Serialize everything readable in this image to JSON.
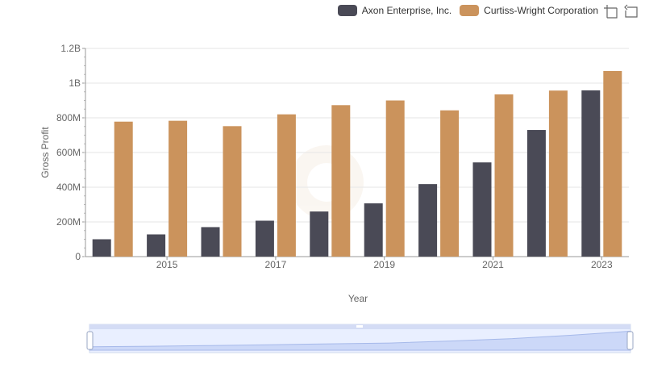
{
  "chart_data": {
    "type": "bar",
    "xlabel": "Year",
    "ylabel": "Gross Profit",
    "x": [
      2014,
      2015,
      2016,
      2017,
      2018,
      2019,
      2020,
      2021,
      2022,
      2023
    ],
    "x_tick_labels": [
      "2015",
      "2017",
      "2019",
      "2021",
      "2023"
    ],
    "y_tick_labels": [
      "0",
      "200M",
      "400M",
      "600M",
      "800M",
      "1B",
      "1.2B"
    ],
    "ylim": [
      0,
      1200000000
    ],
    "grid": true,
    "legend_position": "top-right",
    "series": [
      {
        "name": "Axon Enterprise, Inc.",
        "color": "#4a4a56",
        "values": [
          100000000,
          128000000,
          170000000,
          207000000,
          260000000,
          307000000,
          418000000,
          543000000,
          730000000,
          958000000
        ]
      },
      {
        "name": "Curtiss-Wright Corporation",
        "color": "#cb935c",
        "values": [
          778000000,
          783000000,
          752000000,
          820000000,
          873000000,
          900000000,
          843000000,
          935000000,
          957000000,
          1070000000
        ]
      }
    ]
  },
  "toolbox": {
    "icons": [
      "zoom-icon",
      "restore-icon"
    ]
  }
}
